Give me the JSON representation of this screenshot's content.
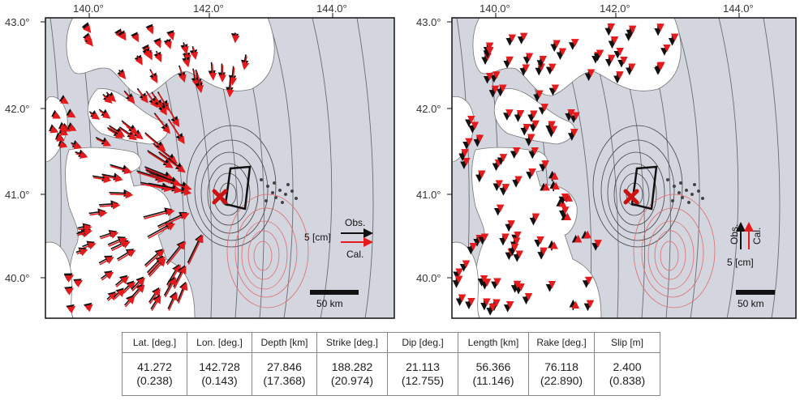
{
  "maps": [
    {
      "id": "horizontal",
      "lon_ticks": [
        "140.0°",
        "142.0°",
        "144.0°"
      ],
      "lat_ticks": [
        "43.0°",
        "42.0°",
        "41.0°",
        "40.0°"
      ],
      "legend": {
        "obs": "Obs.",
        "scale": "5 [cm]",
        "cal": "Cal."
      },
      "scalebar": "50 km"
    },
    {
      "id": "vertical",
      "lon_ticks": [
        "140.0°",
        "142.0°",
        "144.0°"
      ],
      "lat_ticks": [
        "43.0°",
        "42.0°",
        "41.0°",
        "40.0°"
      ],
      "legend": {
        "obs": "Obs.",
        "scale": "5 [cm]",
        "cal": "Cal."
      },
      "scalebar": "50 km"
    }
  ],
  "colors": {
    "sea": "#d4d6df",
    "land": "#ffffff",
    "observed": "#111111",
    "calculated": "#e41a1c",
    "epicenter": "#cc1111"
  },
  "params_table": {
    "headers": [
      "Lat. [deg.]",
      "Lon. [deg.]",
      "Depth [km]",
      "Strike [deg.]",
      "Dip [deg.]",
      "Length [km]",
      "Rake [deg.]",
      "Slip [m]"
    ],
    "values": [
      "41.272",
      "142.728",
      "27.846",
      "188.282",
      "21.113",
      "56.366",
      "76.118",
      "2.400"
    ],
    "errors": [
      "(0.238)",
      "(0.143)",
      "(17.368)",
      "(20.974)",
      "(12.755)",
      "(11.146)",
      "(22.890)",
      "(0.838)"
    ]
  }
}
